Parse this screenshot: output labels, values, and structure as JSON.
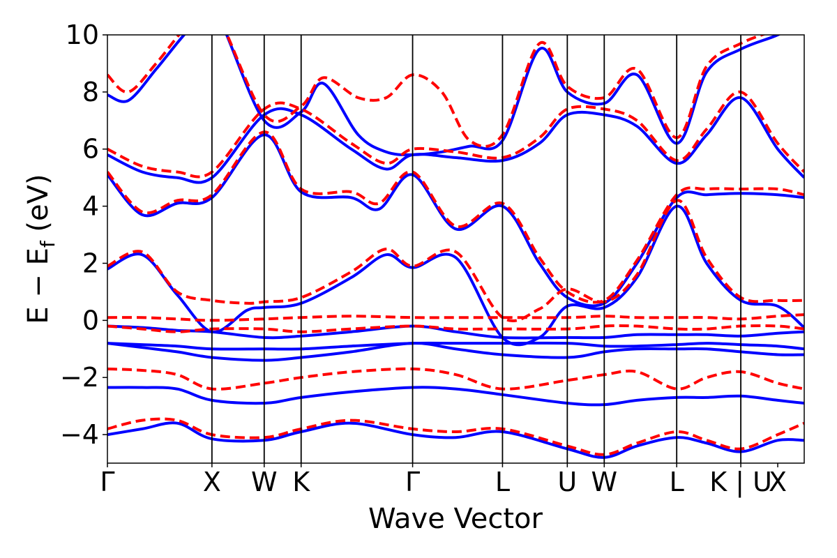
{
  "chart_data": {
    "type": "line",
    "title": "",
    "xlabel": "Wave Vector",
    "ylabel": "E − E",
    "ylabel_sub": "f",
    "ylabel_unit": " (eV)",
    "xlim": [
      0,
      10
    ],
    "ylim": [
      -5,
      10
    ],
    "y_ticks": [
      -4,
      -2,
      0,
      2,
      4,
      6,
      8,
      10
    ],
    "y_tick_labels": [
      "−4",
      "−2",
      "0",
      "2",
      "4",
      "6",
      "8",
      "10"
    ],
    "x_ticks": [
      0,
      1.5,
      2.25,
      2.78,
      4.38,
      5.67,
      6.6,
      7.13,
      8.17,
      9.09,
      9.62
    ],
    "x_tick_labels": [
      "Γ",
      "X",
      "W",
      "K",
      "Γ",
      "L",
      "U",
      "W",
      "L",
      "K | U",
      "X"
    ],
    "grid": false,
    "legend": "none",
    "series": [
      {
        "style": "solid",
        "color": "#0000ff",
        "x": [
          0,
          0.5,
          1.0,
          1.5,
          2.25,
          2.78,
          3.5,
          4.38,
          5.0,
          5.67,
          6.6,
          7.13,
          7.6,
          8.17,
          8.6,
          9.09,
          9.62,
          10
        ],
        "y": [
          -0.2,
          -0.25,
          -0.35,
          -0.4,
          -0.6,
          -0.55,
          -0.4,
          -0.2,
          -0.4,
          -0.6,
          -0.6,
          -0.6,
          -0.5,
          -0.5,
          -0.5,
          -0.55,
          -0.45,
          -0.4
        ]
      },
      {
        "style": "solid",
        "color": "#0000ff",
        "x": [
          0,
          0.5,
          1.0,
          1.5,
          2.25,
          2.78,
          3.5,
          4.38,
          5.0,
          5.67,
          6.6,
          7.13,
          7.6,
          8.17,
          8.6,
          9.09,
          9.62,
          10
        ],
        "y": [
          -0.8,
          -0.85,
          -0.9,
          -1.0,
          -1.0,
          -1.0,
          -0.9,
          -0.8,
          -0.8,
          -0.8,
          -0.8,
          -0.9,
          -0.9,
          -0.85,
          -0.8,
          -0.85,
          -0.9,
          -1.0
        ]
      },
      {
        "style": "solid",
        "color": "#0000ff",
        "x": [
          0,
          0.5,
          1.0,
          1.5,
          2.25,
          2.78,
          3.5,
          4.38,
          5.0,
          5.67,
          6.6,
          7.13,
          7.6,
          8.17,
          8.6,
          9.09,
          9.62,
          10
        ],
        "y": [
          -0.8,
          -0.95,
          -1.1,
          -1.3,
          -1.4,
          -1.3,
          -1.1,
          -0.8,
          -1.0,
          -1.2,
          -1.3,
          -1.1,
          -1.0,
          -1.0,
          -1.0,
          -1.1,
          -1.2,
          -1.2
        ]
      },
      {
        "style": "solid",
        "color": "#0000ff",
        "x": [
          0,
          0.5,
          1.0,
          1.5,
          2.25,
          2.78,
          3.5,
          4.38,
          5.0,
          5.67,
          6.6,
          7.13,
          7.6,
          8.17,
          8.6,
          9.09,
          9.62,
          10
        ],
        "y": [
          -2.35,
          -2.35,
          -2.4,
          -2.8,
          -2.9,
          -2.7,
          -2.5,
          -2.35,
          -2.4,
          -2.6,
          -2.9,
          -2.95,
          -2.8,
          -2.7,
          -2.7,
          -2.65,
          -2.8,
          -2.9
        ]
      },
      {
        "style": "solid",
        "color": "#0000ff",
        "x": [
          0,
          0.5,
          1.0,
          1.5,
          2.25,
          2.78,
          3.5,
          4.38,
          5.0,
          5.67,
          6.6,
          7.13,
          7.6,
          8.17,
          8.6,
          9.09,
          9.62,
          10
        ],
        "y": [
          -4.0,
          -3.8,
          -3.6,
          -4.15,
          -4.2,
          -3.9,
          -3.6,
          -4.0,
          -4.1,
          -3.9,
          -4.5,
          -4.8,
          -4.4,
          -4.1,
          -4.3,
          -4.6,
          -4.2,
          -4.2
        ]
      },
      {
        "style": "solid",
        "color": "#0000ff",
        "x": [
          0,
          0.5,
          1.0,
          1.5,
          2.0,
          2.25,
          2.78,
          3.5,
          4.0,
          4.38,
          5.0,
          5.67,
          6.2,
          6.6,
          7.13,
          7.6,
          8.17,
          8.6,
          9.09,
          9.62,
          10
        ],
        "y": [
          1.8,
          2.3,
          0.9,
          -0.4,
          0.35,
          0.45,
          0.6,
          1.5,
          2.3,
          1.85,
          2.2,
          -0.6,
          -0.6,
          0.5,
          0.45,
          1.5,
          4.0,
          2.0,
          0.7,
          0.5,
          -0.25
        ]
      },
      {
        "style": "solid",
        "color": "#0000ff",
        "x": [
          0,
          0.5,
          1.0,
          1.5,
          2.25,
          2.78,
          3.5,
          3.9,
          4.38,
          5.0,
          5.67,
          6.2,
          6.6,
          7.13,
          7.6,
          8.17,
          8.6,
          9.09,
          9.62,
          10
        ],
        "y": [
          5.1,
          3.7,
          4.1,
          4.3,
          6.5,
          4.5,
          4.3,
          3.9,
          5.1,
          3.2,
          4.0,
          2.0,
          0.8,
          0.6,
          2.0,
          4.3,
          4.4,
          4.45,
          4.4,
          4.3
        ]
      },
      {
        "style": "solid",
        "color": "#0000ff",
        "x": [
          0,
          0.5,
          1.0,
          1.5,
          2.25,
          2.78,
          3.5,
          4.0,
          4.38,
          5.0,
          5.67,
          6.2,
          6.6,
          7.13,
          7.6,
          8.17,
          8.6,
          9.09,
          9.62,
          10
        ],
        "y": [
          5.8,
          5.2,
          5.0,
          5.0,
          7.2,
          7.2,
          6.0,
          5.3,
          5.8,
          5.7,
          5.6,
          6.2,
          7.2,
          7.2,
          6.8,
          5.5,
          6.5,
          7.8,
          6.0,
          5.0
        ]
      },
      {
        "style": "solid",
        "color": "#0000ff",
        "x": [
          0,
          0.3,
          0.7,
          1.1,
          1.5,
          2.25,
          2.78,
          3.1,
          3.6,
          4.0,
          4.38,
          4.8,
          5.2,
          5.67,
          6.2,
          6.6,
          7.13,
          7.6,
          8.17,
          8.6,
          9.09,
          9.62,
          10
        ],
        "y": [
          7.9,
          7.7,
          8.8,
          10.0,
          11.0,
          7.0,
          7.3,
          8.3,
          6.5,
          5.9,
          5.8,
          5.9,
          6.1,
          6.3,
          9.5,
          8.0,
          7.6,
          8.6,
          6.2,
          8.7,
          9.5,
          10.0,
          10.5
        ]
      },
      {
        "style": "dashed",
        "color": "#ff0000",
        "x": [
          0,
          0.5,
          1.0,
          1.5,
          2.25,
          2.78,
          3.5,
          4.38,
          5.0,
          5.67,
          6.6,
          7.13,
          7.6,
          8.17,
          8.6,
          9.09,
          9.62,
          10
        ],
        "y": [
          0.1,
          0.1,
          0.05,
          0.0,
          0.05,
          0.1,
          0.15,
          0.1,
          0.1,
          0.1,
          0.1,
          0.15,
          0.1,
          0.1,
          0.1,
          0.05,
          0.15,
          0.2
        ]
      },
      {
        "style": "dashed",
        "color": "#ff0000",
        "x": [
          0,
          0.5,
          1.0,
          1.5,
          2.25,
          2.78,
          3.5,
          4.38,
          5.0,
          5.67,
          6.6,
          7.13,
          7.6,
          8.17,
          8.6,
          9.09,
          9.62,
          10
        ],
        "y": [
          -0.2,
          -0.3,
          -0.4,
          -0.3,
          -0.3,
          -0.4,
          -0.3,
          -0.2,
          -0.3,
          -0.3,
          -0.3,
          -0.2,
          -0.2,
          -0.3,
          -0.3,
          -0.2,
          -0.2,
          -0.3
        ]
      },
      {
        "style": "dashed",
        "color": "#ff0000",
        "x": [
          0,
          0.5,
          1.0,
          1.5,
          2.25,
          2.78,
          3.5,
          4.38,
          5.0,
          5.67,
          6.6,
          7.13,
          7.6,
          8.17,
          8.6,
          9.09,
          9.62,
          10
        ],
        "y": [
          -1.7,
          -1.75,
          -1.9,
          -2.4,
          -2.2,
          -2.0,
          -1.8,
          -1.7,
          -1.9,
          -2.4,
          -2.1,
          -1.9,
          -1.8,
          -2.4,
          -2.0,
          -1.8,
          -2.2,
          -2.4
        ]
      },
      {
        "style": "dashed",
        "color": "#ff0000",
        "x": [
          0,
          0.5,
          1.0,
          1.5,
          2.25,
          2.78,
          3.5,
          4.38,
          5.0,
          5.67,
          6.6,
          7.13,
          7.6,
          8.17,
          8.6,
          9.09,
          9.62,
          10
        ],
        "y": [
          -3.8,
          -3.5,
          -3.5,
          -4.0,
          -4.1,
          -3.8,
          -3.5,
          -3.8,
          -3.9,
          -3.8,
          -4.4,
          -4.7,
          -4.3,
          -3.9,
          -4.2,
          -4.5,
          -4.0,
          -3.6
        ]
      },
      {
        "style": "dashed",
        "color": "#ff0000",
        "x": [
          0,
          0.5,
          1.0,
          1.5,
          2.0,
          2.25,
          2.78,
          3.5,
          4.0,
          4.38,
          5.0,
          5.67,
          6.2,
          6.6,
          7.13,
          7.6,
          8.17,
          8.6,
          9.09,
          9.62,
          10
        ],
        "y": [
          1.9,
          2.4,
          1.0,
          0.7,
          0.6,
          0.65,
          0.8,
          1.7,
          2.5,
          1.9,
          2.4,
          0.1,
          0.4,
          1.1,
          0.65,
          1.6,
          4.2,
          2.2,
          0.8,
          0.7,
          0.7
        ]
      },
      {
        "style": "dashed",
        "color": "#ff0000",
        "x": [
          0,
          0.5,
          1.0,
          1.5,
          2.25,
          2.78,
          3.5,
          3.9,
          4.38,
          5.0,
          5.67,
          6.2,
          6.6,
          7.13,
          7.6,
          8.17,
          8.6,
          9.09,
          9.62,
          10
        ],
        "y": [
          5.2,
          3.8,
          4.2,
          4.4,
          6.6,
          4.6,
          4.5,
          4.1,
          5.2,
          3.3,
          4.1,
          2.2,
          1.0,
          0.7,
          2.1,
          4.4,
          4.6,
          4.6,
          4.6,
          4.4
        ]
      },
      {
        "style": "dashed",
        "color": "#ff0000",
        "x": [
          0,
          0.5,
          1.0,
          1.5,
          2.25,
          2.78,
          3.5,
          4.0,
          4.38,
          5.0,
          5.67,
          6.2,
          6.6,
          7.13,
          7.6,
          8.17,
          8.6,
          9.09,
          9.62,
          10
        ],
        "y": [
          6.0,
          5.4,
          5.2,
          5.2,
          7.4,
          7.4,
          6.2,
          5.5,
          6.0,
          5.9,
          5.7,
          6.4,
          7.4,
          7.4,
          7.0,
          5.6,
          6.7,
          8.0,
          6.2,
          5.2
        ]
      },
      {
        "style": "dashed",
        "color": "#ff0000",
        "x": [
          0,
          0.3,
          0.7,
          1.1,
          1.5,
          2.25,
          2.78,
          3.1,
          3.6,
          4.0,
          4.38,
          4.8,
          5.2,
          5.67,
          6.2,
          6.6,
          7.13,
          7.6,
          8.17,
          8.6,
          9.09,
          9.62,
          10
        ],
        "y": [
          8.6,
          8.0,
          9.0,
          10.2,
          11.0,
          7.2,
          7.5,
          8.5,
          7.8,
          7.8,
          8.6,
          8.0,
          6.3,
          6.5,
          9.7,
          8.2,
          7.8,
          8.8,
          6.4,
          8.9,
          9.7,
          10.2,
          10.6
        ]
      }
    ]
  }
}
